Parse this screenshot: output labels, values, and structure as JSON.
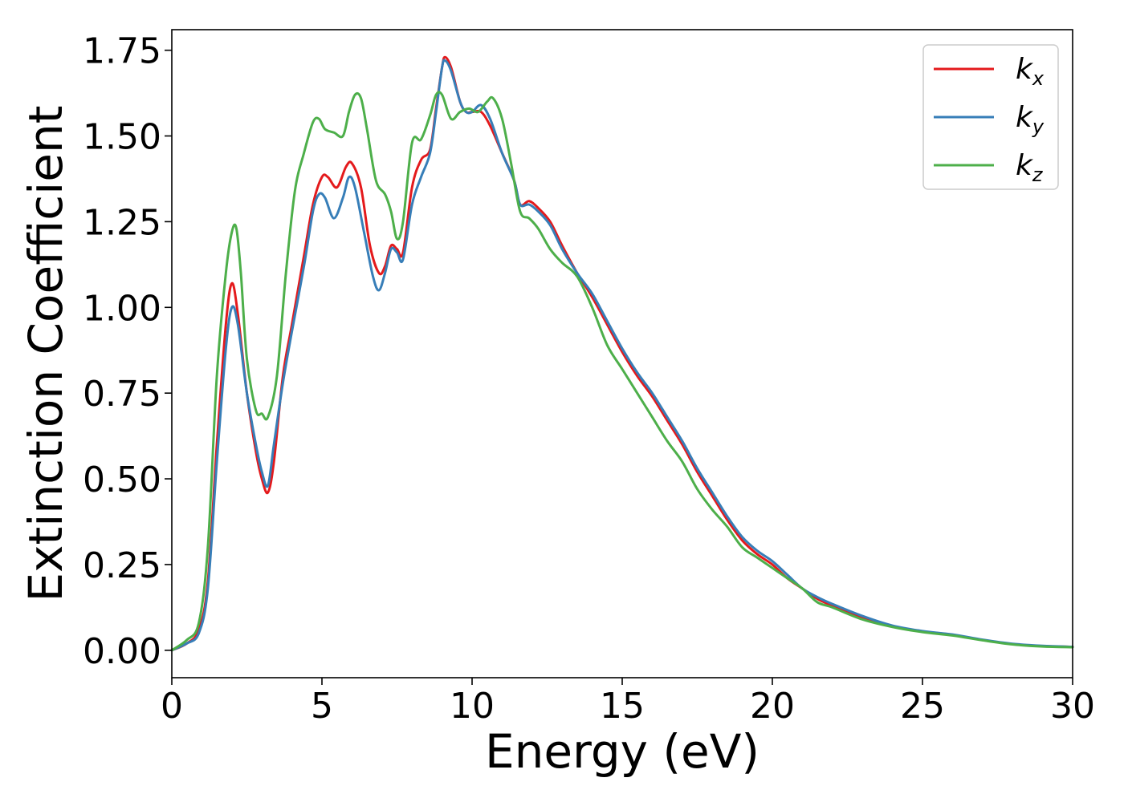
{
  "chart_data": {
    "type": "line",
    "xlabel": "Energy (eV)",
    "ylabel": "Extinction Coefficient",
    "xlim": [
      0,
      30
    ],
    "ylim": [
      -0.08,
      1.81
    ],
    "xticks": [
      0,
      5,
      10,
      15,
      20,
      25,
      30
    ],
    "xtick_labels": [
      "0",
      "5",
      "10",
      "15",
      "20",
      "25",
      "30"
    ],
    "yticks": [
      0,
      0.25,
      0.5,
      0.75,
      1.0,
      1.25,
      1.5,
      1.75
    ],
    "ytick_labels": [
      "0.00",
      "0.25",
      "0.50",
      "0.75",
      "1.00",
      "1.25",
      "1.50",
      "1.75"
    ],
    "grid": false,
    "legend_position": "top-right",
    "series": [
      {
        "name": "kx",
        "label_base": "k",
        "label_sub": "x",
        "color": "#e41a1c",
        "points": [
          [
            0,
            0.0
          ],
          [
            0.5,
            0.02
          ],
          [
            0.9,
            0.06
          ],
          [
            1.2,
            0.2
          ],
          [
            1.5,
            0.6
          ],
          [
            1.8,
            0.95
          ],
          [
            2.0,
            1.07
          ],
          [
            2.2,
            0.98
          ],
          [
            2.5,
            0.75
          ],
          [
            2.8,
            0.58
          ],
          [
            3.0,
            0.5
          ],
          [
            3.2,
            0.46
          ],
          [
            3.4,
            0.55
          ],
          [
            3.7,
            0.8
          ],
          [
            4.0,
            0.95
          ],
          [
            4.4,
            1.15
          ],
          [
            4.7,
            1.3
          ],
          [
            5.0,
            1.38
          ],
          [
            5.2,
            1.38
          ],
          [
            5.5,
            1.35
          ],
          [
            5.8,
            1.41
          ],
          [
            6.0,
            1.42
          ],
          [
            6.3,
            1.35
          ],
          [
            6.6,
            1.18
          ],
          [
            6.9,
            1.1
          ],
          [
            7.1,
            1.12
          ],
          [
            7.3,
            1.18
          ],
          [
            7.5,
            1.17
          ],
          [
            7.7,
            1.16
          ],
          [
            8.0,
            1.35
          ],
          [
            8.3,
            1.43
          ],
          [
            8.6,
            1.46
          ],
          [
            8.8,
            1.58
          ],
          [
            9.0,
            1.7
          ],
          [
            9.1,
            1.73
          ],
          [
            9.3,
            1.7
          ],
          [
            9.6,
            1.6
          ],
          [
            9.8,
            1.57
          ],
          [
            10.0,
            1.57
          ],
          [
            10.3,
            1.57
          ],
          [
            10.6,
            1.53
          ],
          [
            11.0,
            1.45
          ],
          [
            11.4,
            1.37
          ],
          [
            11.6,
            1.3
          ],
          [
            11.9,
            1.31
          ],
          [
            12.2,
            1.29
          ],
          [
            12.6,
            1.25
          ],
          [
            13.0,
            1.18
          ],
          [
            13.5,
            1.1
          ],
          [
            14.0,
            1.03
          ],
          [
            14.5,
            0.95
          ],
          [
            15.0,
            0.87
          ],
          [
            15.5,
            0.8
          ],
          [
            16.0,
            0.74
          ],
          [
            16.5,
            0.67
          ],
          [
            17.0,
            0.6
          ],
          [
            17.5,
            0.52
          ],
          [
            18.0,
            0.45
          ],
          [
            18.5,
            0.38
          ],
          [
            19.0,
            0.32
          ],
          [
            19.5,
            0.28
          ],
          [
            20.0,
            0.25
          ],
          [
            20.5,
            0.21
          ],
          [
            21.0,
            0.18
          ],
          [
            21.5,
            0.15
          ],
          [
            22.0,
            0.13
          ],
          [
            23.0,
            0.095
          ],
          [
            24.0,
            0.07
          ],
          [
            25.0,
            0.055
          ],
          [
            26.0,
            0.045
          ],
          [
            27.0,
            0.03
          ],
          [
            28.0,
            0.018
          ],
          [
            29.0,
            0.012
          ],
          [
            30.0,
            0.01
          ]
        ]
      },
      {
        "name": "ky",
        "label_base": "k",
        "label_sub": "y",
        "color": "#377eb8",
        "points": [
          [
            0,
            0.0
          ],
          [
            0.5,
            0.02
          ],
          [
            0.9,
            0.05
          ],
          [
            1.2,
            0.18
          ],
          [
            1.5,
            0.55
          ],
          [
            1.8,
            0.88
          ],
          [
            2.0,
            1.0
          ],
          [
            2.2,
            0.95
          ],
          [
            2.5,
            0.75
          ],
          [
            2.8,
            0.6
          ],
          [
            3.0,
            0.52
          ],
          [
            3.2,
            0.48
          ],
          [
            3.4,
            0.6
          ],
          [
            3.7,
            0.78
          ],
          [
            4.0,
            0.93
          ],
          [
            4.4,
            1.12
          ],
          [
            4.7,
            1.28
          ],
          [
            4.9,
            1.33
          ],
          [
            5.1,
            1.32
          ],
          [
            5.4,
            1.26
          ],
          [
            5.7,
            1.32
          ],
          [
            5.9,
            1.38
          ],
          [
            6.1,
            1.35
          ],
          [
            6.4,
            1.22
          ],
          [
            6.7,
            1.09
          ],
          [
            6.9,
            1.05
          ],
          [
            7.1,
            1.1
          ],
          [
            7.3,
            1.17
          ],
          [
            7.5,
            1.16
          ],
          [
            7.7,
            1.14
          ],
          [
            8.0,
            1.3
          ],
          [
            8.3,
            1.38
          ],
          [
            8.6,
            1.45
          ],
          [
            8.8,
            1.57
          ],
          [
            9.0,
            1.7
          ],
          [
            9.1,
            1.72
          ],
          [
            9.3,
            1.69
          ],
          [
            9.6,
            1.6
          ],
          [
            9.8,
            1.57
          ],
          [
            10.0,
            1.57
          ],
          [
            10.3,
            1.59
          ],
          [
            10.6,
            1.55
          ],
          [
            11.0,
            1.45
          ],
          [
            11.4,
            1.37
          ],
          [
            11.6,
            1.3
          ],
          [
            11.9,
            1.3
          ],
          [
            12.2,
            1.28
          ],
          [
            12.6,
            1.24
          ],
          [
            13.0,
            1.17
          ],
          [
            13.5,
            1.1
          ],
          [
            14.0,
            1.04
          ],
          [
            14.5,
            0.96
          ],
          [
            15.0,
            0.88
          ],
          [
            15.5,
            0.81
          ],
          [
            16.0,
            0.75
          ],
          [
            16.5,
            0.68
          ],
          [
            17.0,
            0.61
          ],
          [
            17.5,
            0.53
          ],
          [
            18.0,
            0.46
          ],
          [
            18.5,
            0.39
          ],
          [
            19.0,
            0.33
          ],
          [
            19.5,
            0.29
          ],
          [
            20.0,
            0.26
          ],
          [
            20.5,
            0.22
          ],
          [
            21.0,
            0.18
          ],
          [
            21.5,
            0.155
          ],
          [
            22.0,
            0.135
          ],
          [
            23.0,
            0.1
          ],
          [
            24.0,
            0.072
          ],
          [
            25.0,
            0.056
          ],
          [
            26.0,
            0.046
          ],
          [
            27.0,
            0.031
          ],
          [
            28.0,
            0.019
          ],
          [
            29.0,
            0.013
          ],
          [
            30.0,
            0.01
          ]
        ]
      },
      {
        "name": "kz",
        "label_base": "k",
        "label_sub": "z",
        "color": "#4daf4a",
        "points": [
          [
            0,
            0.0
          ],
          [
            0.5,
            0.03
          ],
          [
            0.9,
            0.08
          ],
          [
            1.2,
            0.3
          ],
          [
            1.5,
            0.8
          ],
          [
            1.8,
            1.1
          ],
          [
            2.0,
            1.22
          ],
          [
            2.15,
            1.23
          ],
          [
            2.3,
            1.1
          ],
          [
            2.5,
            0.85
          ],
          [
            2.8,
            0.7
          ],
          [
            3.0,
            0.69
          ],
          [
            3.2,
            0.68
          ],
          [
            3.5,
            0.8
          ],
          [
            3.8,
            1.1
          ],
          [
            4.1,
            1.34
          ],
          [
            4.4,
            1.45
          ],
          [
            4.7,
            1.54
          ],
          [
            4.9,
            1.55
          ],
          [
            5.1,
            1.52
          ],
          [
            5.4,
            1.51
          ],
          [
            5.7,
            1.5
          ],
          [
            5.9,
            1.57
          ],
          [
            6.1,
            1.62
          ],
          [
            6.3,
            1.61
          ],
          [
            6.5,
            1.52
          ],
          [
            6.8,
            1.37
          ],
          [
            7.1,
            1.33
          ],
          [
            7.3,
            1.28
          ],
          [
            7.5,
            1.2
          ],
          [
            7.7,
            1.25
          ],
          [
            8.0,
            1.48
          ],
          [
            8.3,
            1.49
          ],
          [
            8.6,
            1.56
          ],
          [
            8.8,
            1.62
          ],
          [
            9.0,
            1.62
          ],
          [
            9.3,
            1.55
          ],
          [
            9.6,
            1.57
          ],
          [
            9.9,
            1.58
          ],
          [
            10.2,
            1.57
          ],
          [
            10.5,
            1.6
          ],
          [
            10.7,
            1.61
          ],
          [
            11.0,
            1.55
          ],
          [
            11.3,
            1.42
          ],
          [
            11.6,
            1.28
          ],
          [
            11.9,
            1.26
          ],
          [
            12.2,
            1.23
          ],
          [
            12.6,
            1.17
          ],
          [
            13.0,
            1.13
          ],
          [
            13.5,
            1.09
          ],
          [
            14.0,
            1.0
          ],
          [
            14.5,
            0.89
          ],
          [
            15.0,
            0.82
          ],
          [
            15.5,
            0.75
          ],
          [
            16.0,
            0.68
          ],
          [
            16.5,
            0.61
          ],
          [
            17.0,
            0.55
          ],
          [
            17.5,
            0.47
          ],
          [
            18.0,
            0.41
          ],
          [
            18.5,
            0.36
          ],
          [
            19.0,
            0.3
          ],
          [
            19.5,
            0.27
          ],
          [
            20.0,
            0.24
          ],
          [
            20.5,
            0.21
          ],
          [
            21.0,
            0.18
          ],
          [
            21.5,
            0.14
          ],
          [
            22.0,
            0.125
          ],
          [
            23.0,
            0.09
          ],
          [
            24.0,
            0.068
          ],
          [
            25.0,
            0.053
          ],
          [
            26.0,
            0.043
          ],
          [
            27.0,
            0.029
          ],
          [
            28.0,
            0.017
          ],
          [
            29.0,
            0.011
          ],
          [
            30.0,
            0.009
          ]
        ]
      }
    ]
  }
}
